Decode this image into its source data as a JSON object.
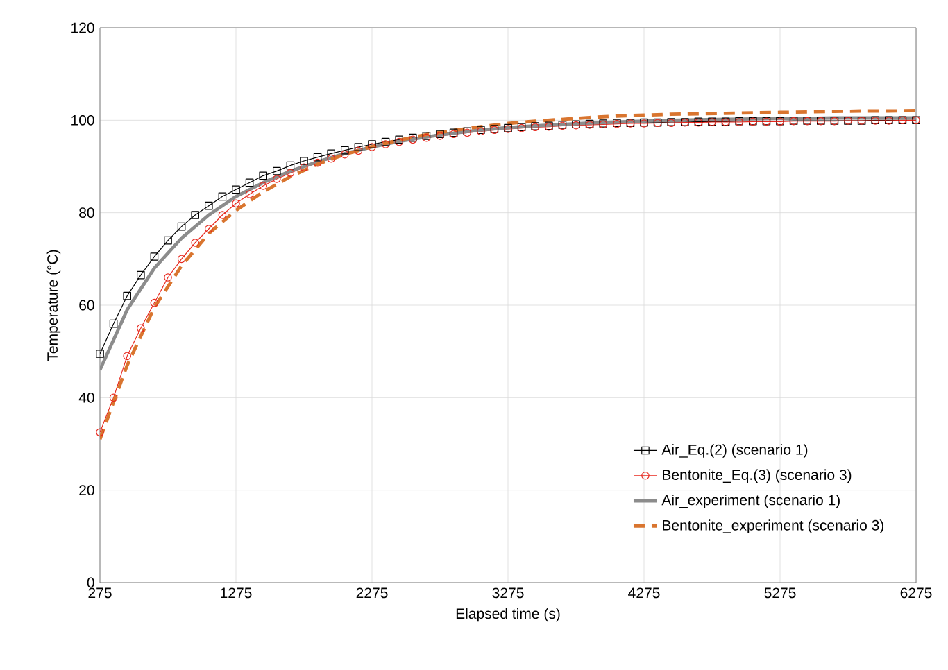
{
  "chart_data": {
    "type": "line",
    "xlabel": "Elapsed time (s)",
    "ylabel": "Temperature (°C)",
    "xlim": [
      275,
      6275
    ],
    "xticks": [
      275,
      1275,
      2275,
      3275,
      4275,
      5275,
      6275
    ],
    "ylim": [
      0,
      120
    ],
    "yticks": [
      0,
      20,
      40,
      60,
      80,
      100,
      120
    ],
    "grid": true,
    "legend": "bottom right",
    "series": [
      {
        "name": "Air_Eq.(2) (scenario 1)",
        "color": "#000000",
        "marker": "square",
        "line_style": "solid",
        "x": [
          275,
          375,
          475,
          575,
          675,
          775,
          875,
          975,
          1075,
          1175,
          1275,
          1375,
          1475,
          1575,
          1675,
          1775,
          1875,
          1975,
          2075,
          2175,
          2275,
          2375,
          2475,
          2575,
          2675,
          2775,
          2875,
          2975,
          3075,
          3175,
          3275,
          3375,
          3475,
          3575,
          3675,
          3775,
          3875,
          3975,
          4075,
          4175,
          4275,
          4375,
          4475,
          4575,
          4675,
          4775,
          4875,
          4975,
          5075,
          5175,
          5275,
          5375,
          5475,
          5575,
          5675,
          5775,
          5875,
          5975,
          6075,
          6175,
          6275
        ],
        "values": [
          49.5,
          56,
          62,
          66.5,
          70.5,
          74,
          77,
          79.5,
          81.5,
          83.5,
          85,
          86.5,
          88,
          89,
          90.2,
          91.2,
          92,
          92.8,
          93.5,
          94.2,
          94.8,
          95.3,
          95.8,
          96.2,
          96.6,
          97,
          97.3,
          97.6,
          97.9,
          98.1,
          98.3,
          98.5,
          98.7,
          98.8,
          99,
          99.1,
          99.2,
          99.3,
          99.4,
          99.4,
          99.5,
          99.5,
          99.6,
          99.6,
          99.7,
          99.7,
          99.7,
          99.8,
          99.8,
          99.8,
          99.8,
          99.9,
          99.9,
          99.9,
          99.9,
          99.9,
          99.9,
          100,
          100,
          100,
          100
        ]
      },
      {
        "name": "Bentonite_Eq.(3) (scenario 3)",
        "color": "#e8281e",
        "marker": "circle",
        "line_style": "solid",
        "x": [
          275,
          375,
          475,
          575,
          675,
          775,
          875,
          975,
          1075,
          1175,
          1275,
          1375,
          1475,
          1575,
          1675,
          1775,
          1875,
          1975,
          2075,
          2175,
          2275,
          2375,
          2475,
          2575,
          2675,
          2775,
          2875,
          2975,
          3075,
          3175,
          3275,
          3375,
          3475,
          3575,
          3675,
          3775,
          3875,
          3975,
          4075,
          4175,
          4275,
          4375,
          4475,
          4575,
          4675,
          4775,
          4875,
          4975,
          5075,
          5175,
          5275,
          5375,
          5475,
          5575,
          5675,
          5775,
          5875,
          5975,
          6075,
          6175,
          6275
        ],
        "values": [
          32.5,
          40,
          49,
          55,
          60.5,
          66,
          70,
          73.5,
          76.5,
          79.5,
          82,
          84,
          85.8,
          87.3,
          88.6,
          89.8,
          90.8,
          91.7,
          92.6,
          93.4,
          94.2,
          94.8,
          95.3,
          95.8,
          96.2,
          96.6,
          97,
          97.3,
          97.6,
          97.9,
          98.1,
          98.3,
          98.5,
          98.6,
          98.8,
          98.9,
          99,
          99.1,
          99.2,
          99.3,
          99.3,
          99.4,
          99.4,
          99.5,
          99.5,
          99.6,
          99.6,
          99.6,
          99.7,
          99.7,
          99.7,
          99.8,
          99.8,
          99.8,
          99.8,
          99.9,
          99.9,
          99.9,
          99.9,
          100,
          100
        ]
      },
      {
        "name": "Air_experiment (scenario 1)",
        "color": "#8c8c8c",
        "marker": "none",
        "line_style": "solid",
        "x": [
          275,
          475,
          675,
          875,
          1075,
          1275,
          1475,
          1675,
          1875,
          2075,
          2275,
          2475,
          2675,
          2875,
          3075,
          3275,
          3475,
          3675,
          3875,
          4075,
          4275,
          4475,
          4675,
          4875,
          5075,
          5275,
          5475,
          5675,
          5875,
          6075,
          6275
        ],
        "values": [
          46,
          59,
          68,
          74.5,
          79.5,
          83.5,
          86.5,
          89,
          91,
          92.8,
          94.2,
          95.4,
          96.4,
          97.2,
          97.9,
          98.4,
          98.8,
          99.1,
          99.4,
          99.6,
          99.8,
          100,
          100.1,
          100.2,
          100.3,
          100.4,
          100.4,
          100.5,
          100.5,
          100.5,
          100.5
        ]
      },
      {
        "name": "Bentonite_experiment (scenario 3)",
        "color": "#d9752f",
        "marker": "none",
        "line_style": "dashed",
        "x": [
          275,
          475,
          675,
          875,
          1075,
          1275,
          1475,
          1675,
          1875,
          2075,
          2275,
          2475,
          2675,
          2875,
          3075,
          3275,
          3475,
          3675,
          3875,
          4075,
          4275,
          4475,
          4675,
          4875,
          5075,
          5275,
          5475,
          5675,
          5875,
          6075,
          6275
        ],
        "values": [
          31,
          47,
          59.5,
          68.5,
          75.5,
          80.5,
          84.5,
          87.8,
          90.5,
          92.6,
          94.3,
          95.7,
          96.9,
          97.8,
          98.6,
          99.3,
          99.8,
          100.2,
          100.6,
          100.9,
          101.1,
          101.3,
          101.4,
          101.5,
          101.6,
          101.7,
          101.8,
          101.9,
          102,
          102,
          102.1
        ]
      }
    ]
  }
}
